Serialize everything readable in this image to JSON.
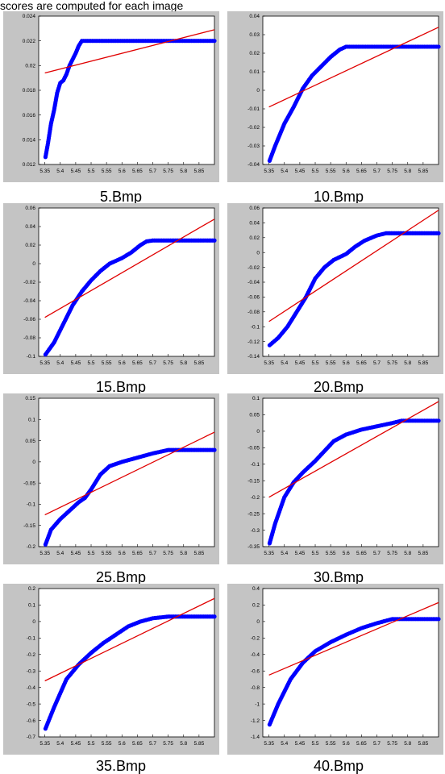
{
  "header_text": "scores are computed for each image",
  "colors": {
    "frame": "#c4c4c4",
    "axes_bg": "#ffffff",
    "points": "#0000ff",
    "fit_line": "#e00000"
  },
  "chart_data": [
    {
      "type": "scatter",
      "caption": "5.Bmp",
      "xlim": [
        5.33,
        5.9
      ],
      "ylim": [
        0.012,
        0.024
      ],
      "xticks": [
        "5.35",
        "5.4",
        "5.45",
        "5.5",
        "5.55",
        "5.6",
        "5.65",
        "5.7",
        "5.75",
        "5.8",
        "5.85"
      ],
      "yticks": [
        "0.012",
        "0.014",
        "0.016",
        "0.018",
        "0.02",
        "0.022",
        "0.024"
      ],
      "curve": [
        [
          5.352,
          0.0126
        ],
        [
          5.36,
          0.0137
        ],
        [
          5.37,
          0.0153
        ],
        [
          5.38,
          0.0164
        ],
        [
          5.39,
          0.0178
        ],
        [
          5.4,
          0.0186
        ],
        [
          5.41,
          0.0188
        ],
        [
          5.42,
          0.0193
        ],
        [
          5.43,
          0.02
        ],
        [
          5.44,
          0.0205
        ],
        [
          5.45,
          0.021
        ],
        [
          5.46,
          0.0216
        ],
        [
          5.47,
          0.022
        ],
        [
          5.9,
          0.022
        ]
      ],
      "fit": [
        [
          5.35,
          0.0194
        ],
        [
          5.9,
          0.0229
        ]
      ]
    },
    {
      "type": "scatter",
      "caption": "10.Bmp",
      "xlim": [
        5.33,
        5.9
      ],
      "ylim": [
        -0.04,
        0.04
      ],
      "xticks": [
        "5.35",
        "5.4",
        "5.45",
        "5.5",
        "5.55",
        "5.6",
        "5.65",
        "5.7",
        "5.75",
        "5.8",
        "5.85"
      ],
      "yticks": [
        "-0.04",
        "-0.03",
        "-0.02",
        "-0.01",
        "0",
        "0.01",
        "0.02",
        "0.03",
        "0.04"
      ],
      "curve": [
        [
          5.352,
          -0.038
        ],
        [
          5.37,
          -0.03
        ],
        [
          5.4,
          -0.018
        ],
        [
          5.43,
          -0.009
        ],
        [
          5.46,
          0.001
        ],
        [
          5.49,
          0.008
        ],
        [
          5.52,
          0.013
        ],
        [
          5.55,
          0.018
        ],
        [
          5.58,
          0.022
        ],
        [
          5.6,
          0.0235
        ],
        [
          5.9,
          0.0235
        ]
      ],
      "fit": [
        [
          5.35,
          -0.009
        ],
        [
          5.9,
          0.034
        ]
      ]
    },
    {
      "type": "scatter",
      "caption": "15.Bmp",
      "xlim": [
        5.33,
        5.9
      ],
      "ylim": [
        -0.1,
        0.06
      ],
      "xticks": [
        "5.35",
        "5.4",
        "5.45",
        "5.5",
        "5.55",
        "5.6",
        "5.65",
        "5.7",
        "5.75",
        "5.8",
        "5.85"
      ],
      "yticks": [
        "-0.1",
        "-0.08",
        "-0.06",
        "-0.04",
        "-0.02",
        "0",
        "0.02",
        "0.04",
        "0.06"
      ],
      "curve": [
        [
          5.352,
          -0.098
        ],
        [
          5.38,
          -0.085
        ],
        [
          5.41,
          -0.065
        ],
        [
          5.44,
          -0.045
        ],
        [
          5.47,
          -0.03
        ],
        [
          5.5,
          -0.018
        ],
        [
          5.53,
          -0.008
        ],
        [
          5.56,
          0.0
        ],
        [
          5.6,
          0.006
        ],
        [
          5.63,
          0.012
        ],
        [
          5.66,
          0.02
        ],
        [
          5.68,
          0.024
        ],
        [
          5.7,
          0.025
        ],
        [
          5.9,
          0.025
        ]
      ],
      "fit": [
        [
          5.35,
          -0.058
        ],
        [
          5.9,
          0.048
        ]
      ]
    },
    {
      "type": "scatter",
      "caption": "20.Bmp",
      "xlim": [
        5.33,
        5.9
      ],
      "ylim": [
        -0.14,
        0.06
      ],
      "xticks": [
        "5.35",
        "5.4",
        "5.45",
        "5.5",
        "5.55",
        "5.6",
        "5.65",
        "5.7",
        "5.75",
        "5.8",
        "5.85"
      ],
      "yticks": [
        "-0.14",
        "-0.12",
        "-0.1",
        "-0.08",
        "-0.06",
        "-0.04",
        "-0.02",
        "0",
        "0.02",
        "0.04",
        "0.06"
      ],
      "curve": [
        [
          5.352,
          -0.125
        ],
        [
          5.38,
          -0.115
        ],
        [
          5.41,
          -0.1
        ],
        [
          5.44,
          -0.08
        ],
        [
          5.47,
          -0.06
        ],
        [
          5.5,
          -0.035
        ],
        [
          5.53,
          -0.02
        ],
        [
          5.56,
          -0.01
        ],
        [
          5.6,
          -0.002
        ],
        [
          5.63,
          0.008
        ],
        [
          5.66,
          0.016
        ],
        [
          5.7,
          0.023
        ],
        [
          5.73,
          0.026
        ],
        [
          5.9,
          0.026
        ]
      ],
      "fit": [
        [
          5.35,
          -0.093
        ],
        [
          5.9,
          0.057
        ]
      ]
    },
    {
      "type": "scatter",
      "caption": "25.Bmp",
      "xlim": [
        5.33,
        5.9
      ],
      "ylim": [
        -0.2,
        0.15
      ],
      "xticks": [
        "5.35",
        "5.4",
        "5.45",
        "5.5",
        "5.55",
        "5.6",
        "5.65",
        "5.7",
        "5.75",
        "5.8",
        "5.85"
      ],
      "yticks": [
        "-0.2",
        "-0.15",
        "-0.1",
        "-0.05",
        "0",
        "0.05",
        "0.1",
        "0.15"
      ],
      "curve": [
        [
          5.352,
          -0.195
        ],
        [
          5.37,
          -0.16
        ],
        [
          5.4,
          -0.135
        ],
        [
          5.43,
          -0.115
        ],
        [
          5.46,
          -0.095
        ],
        [
          5.48,
          -0.085
        ],
        [
          5.5,
          -0.065
        ],
        [
          5.53,
          -0.03
        ],
        [
          5.56,
          -0.01
        ],
        [
          5.6,
          0.0
        ],
        [
          5.65,
          0.01
        ],
        [
          5.7,
          0.02
        ],
        [
          5.75,
          0.028
        ],
        [
          5.9,
          0.028
        ]
      ],
      "fit": [
        [
          5.35,
          -0.125
        ],
        [
          5.9,
          0.07
        ]
      ]
    },
    {
      "type": "scatter",
      "caption": "30.Bmp",
      "xlim": [
        5.33,
        5.9
      ],
      "ylim": [
        -0.35,
        0.1
      ],
      "xticks": [
        "5.35",
        "5.4",
        "5.45",
        "5.5",
        "5.55",
        "5.6",
        "5.65",
        "5.7",
        "5.75",
        "5.8",
        "5.85"
      ],
      "yticks": [
        "-0.35",
        "-0.3",
        "-0.25",
        "-0.2",
        "-0.15",
        "-0.1",
        "-0.05",
        "0",
        "0.05",
        "0.1"
      ],
      "curve": [
        [
          5.352,
          -0.34
        ],
        [
          5.37,
          -0.28
        ],
        [
          5.4,
          -0.2
        ],
        [
          5.43,
          -0.155
        ],
        [
          5.46,
          -0.125
        ],
        [
          5.5,
          -0.09
        ],
        [
          5.53,
          -0.06
        ],
        [
          5.56,
          -0.03
        ],
        [
          5.6,
          -0.01
        ],
        [
          5.65,
          0.005
        ],
        [
          5.7,
          0.015
        ],
        [
          5.75,
          0.025
        ],
        [
          5.78,
          0.032
        ],
        [
          5.9,
          0.032
        ]
      ],
      "fit": [
        [
          5.35,
          -0.2
        ],
        [
          5.9,
          0.09
        ]
      ]
    },
    {
      "type": "scatter",
      "caption": "35.Bmp",
      "xlim": [
        5.33,
        5.9
      ],
      "ylim": [
        -0.7,
        0.2
      ],
      "xticks": [
        "5.35",
        "5.4",
        "5.45",
        "5.5",
        "5.55",
        "5.6",
        "5.65",
        "5.7",
        "5.75",
        "5.8",
        "5.85"
      ],
      "yticks": [
        "-0.7",
        "-0.6",
        "-0.5",
        "-0.4",
        "-0.3",
        "-0.2",
        "-0.1",
        "0",
        "0.1",
        "0.2"
      ],
      "curve": [
        [
          5.352,
          -0.65
        ],
        [
          5.38,
          -0.52
        ],
        [
          5.42,
          -0.35
        ],
        [
          5.46,
          -0.26
        ],
        [
          5.5,
          -0.19
        ],
        [
          5.54,
          -0.13
        ],
        [
          5.58,
          -0.08
        ],
        [
          5.62,
          -0.03
        ],
        [
          5.66,
          0.0
        ],
        [
          5.7,
          0.02
        ],
        [
          5.75,
          0.03
        ],
        [
          5.9,
          0.03
        ]
      ],
      "fit": [
        [
          5.35,
          -0.36
        ],
        [
          5.9,
          0.14
        ]
      ]
    },
    {
      "type": "scatter",
      "caption": "40.Bmp",
      "xlim": [
        5.33,
        5.9
      ],
      "ylim": [
        -1.4,
        0.4
      ],
      "xticks": [
        "5.35",
        "5.4",
        "5.45",
        "5.5",
        "5.55",
        "5.6",
        "5.65",
        "5.7",
        "5.75",
        "5.8",
        "5.85"
      ],
      "yticks": [
        "-1.4",
        "-1.2",
        "-1",
        "-0.8",
        "-0.6",
        "-0.4",
        "-0.2",
        "0",
        "0.2",
        "0.4"
      ],
      "curve": [
        [
          5.352,
          -1.25
        ],
        [
          5.38,
          -1.0
        ],
        [
          5.42,
          -0.7
        ],
        [
          5.46,
          -0.5
        ],
        [
          5.5,
          -0.36
        ],
        [
          5.55,
          -0.25
        ],
        [
          5.6,
          -0.16
        ],
        [
          5.65,
          -0.08
        ],
        [
          5.7,
          -0.02
        ],
        [
          5.75,
          0.03
        ],
        [
          5.9,
          0.03
        ]
      ],
      "fit": [
        [
          5.35,
          -0.65
        ],
        [
          5.9,
          0.23
        ]
      ]
    }
  ]
}
